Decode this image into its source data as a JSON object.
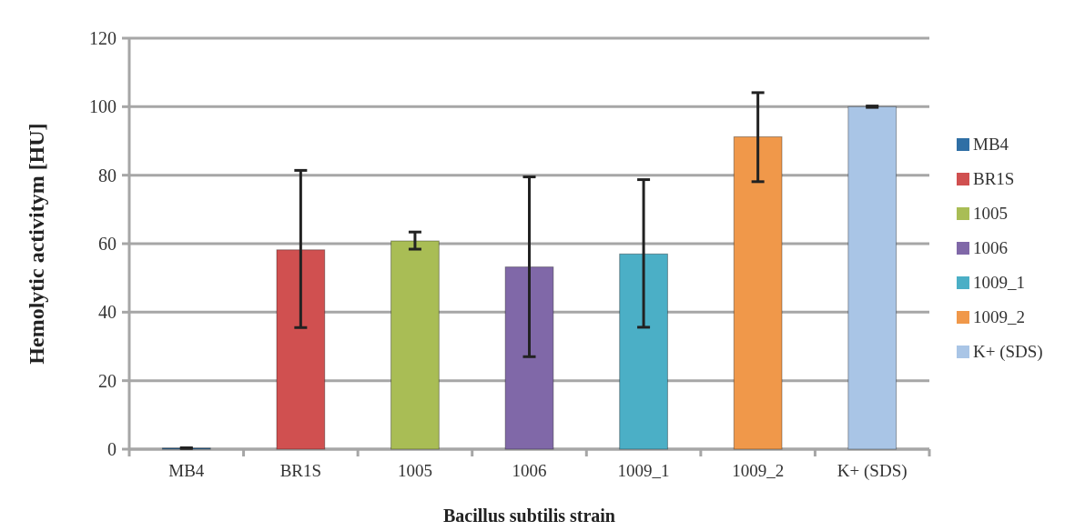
{
  "chart_data": {
    "type": "bar",
    "xlabel": "Bacillus subtilis strain",
    "ylabel": "Hemolytic activitym [HU]",
    "stacked": true,
    "categories": [
      "MB4",
      "BR1S",
      "1005",
      "1006",
      "1009_1",
      "1009_2",
      "K+ (SDS)"
    ],
    "series": [
      {
        "name": "MB4",
        "color": "#2f6fa5",
        "values": [
          0.3,
          null,
          null,
          null,
          null,
          null,
          null
        ],
        "errors": [
          [
            0.2,
            0.4
          ],
          null,
          null,
          null,
          null,
          null,
          null
        ]
      },
      {
        "name": "BR1S",
        "color": "#d05050",
        "values": [
          null,
          58.2,
          null,
          null,
          null,
          null,
          null
        ],
        "errors": [
          null,
          [
            35.5,
            81.4
          ],
          null,
          null,
          null,
          null,
          null
        ]
      },
      {
        "name": "1005",
        "color": "#a9bd55",
        "values": [
          null,
          null,
          60.8,
          null,
          null,
          null,
          null
        ],
        "errors": [
          null,
          null,
          [
            58.4,
            63.4
          ],
          null,
          null,
          null,
          null
        ]
      },
      {
        "name": "1006",
        "color": "#8068a8",
        "values": [
          null,
          null,
          null,
          53.2,
          null,
          null,
          null
        ],
        "errors": [
          null,
          null,
          null,
          [
            27,
            79.5
          ],
          null,
          null,
          null
        ]
      },
      {
        "name": "1009_1",
        "color": "#4bafc6",
        "values": [
          null,
          null,
          null,
          null,
          57,
          null,
          null
        ],
        "errors": [
          null,
          null,
          null,
          null,
          [
            35.6,
            78.7
          ],
          null,
          null
        ]
      },
      {
        "name": "1009_2",
        "color": "#f0984a",
        "values": [
          null,
          null,
          null,
          null,
          null,
          91.2,
          null
        ],
        "errors": [
          null,
          null,
          null,
          null,
          null,
          [
            78.1,
            104.1
          ],
          null
        ]
      },
      {
        "name": "K+ (SDS)",
        "color": "#a9c5e6",
        "values": [
          null,
          null,
          null,
          null,
          null,
          null,
          100
        ],
        "errors": [
          null,
          null,
          null,
          null,
          null,
          null,
          [
            99.8,
            100.2
          ]
        ]
      }
    ],
    "ylim": [
      0,
      120
    ],
    "yticks": [
      0,
      20,
      40,
      60,
      80,
      100,
      120
    ],
    "grid": "y",
    "legend": "right"
  }
}
